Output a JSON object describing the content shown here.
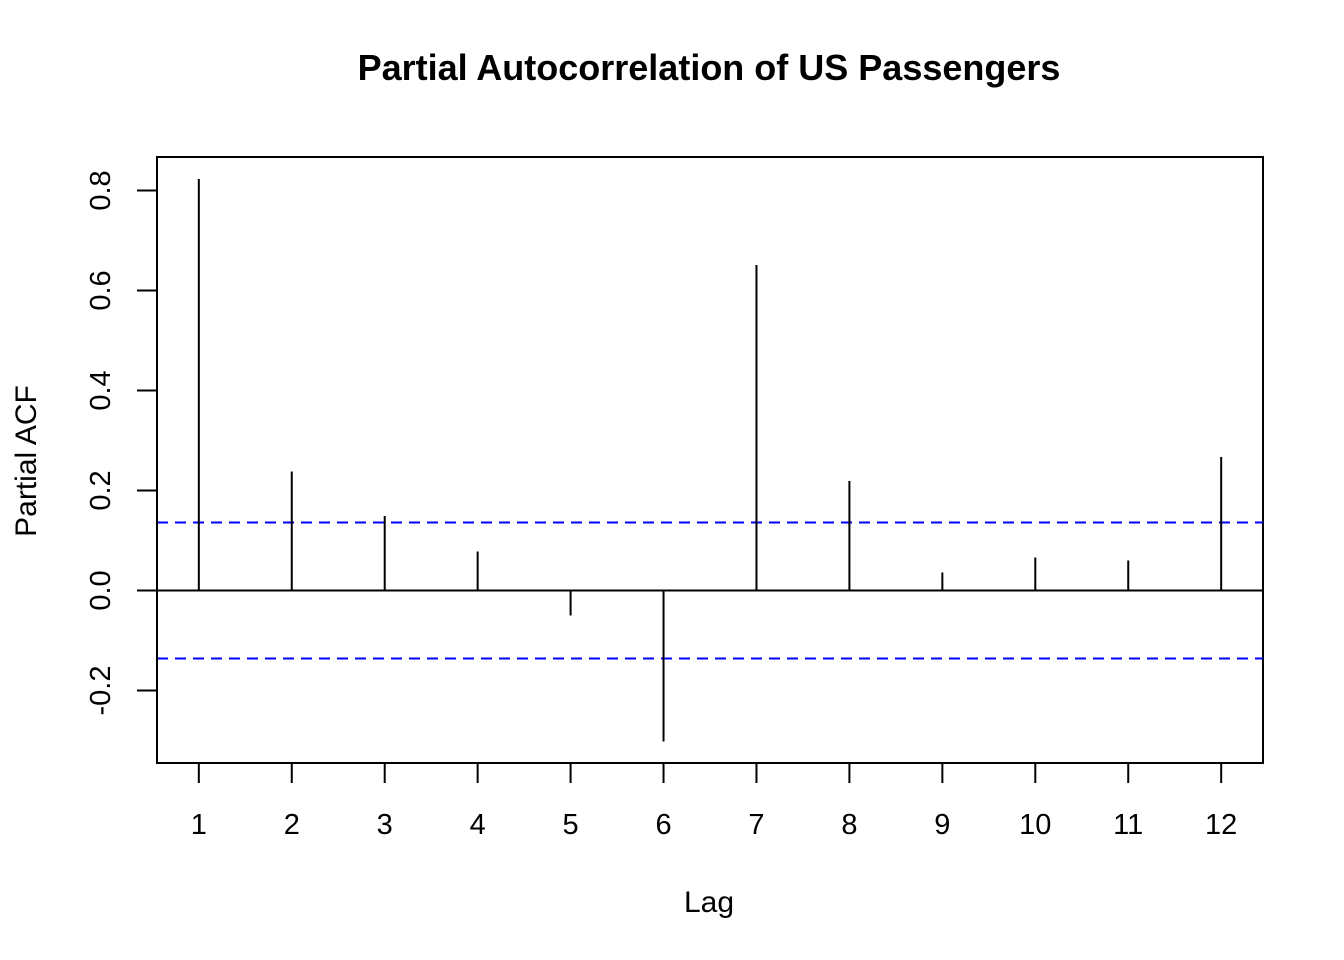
{
  "chart_data": {
    "type": "bar",
    "title": "Partial Autocorrelation of US Passengers",
    "xlabel": "Lag",
    "ylabel": "Partial ACF",
    "x": [
      1,
      2,
      3,
      4,
      5,
      6,
      7,
      8,
      9,
      10,
      11,
      12
    ],
    "values": [
      0.823,
      0.238,
      0.149,
      0.078,
      -0.05,
      -0.302,
      0.651,
      0.219,
      0.036,
      0.066,
      0.06,
      0.267
    ],
    "xticks": [
      "1",
      "2",
      "3",
      "4",
      "5",
      "6",
      "7",
      "8",
      "9",
      "10",
      "11",
      "12"
    ],
    "yticks": [
      "-0.2",
      "0.0",
      "0.2",
      "0.4",
      "0.6",
      "0.8"
    ],
    "xlim": [
      0.55,
      12.45
    ],
    "ylim": [
      -0.345,
      0.867
    ],
    "confidence_bound": 0.136,
    "zero_line": true,
    "grid": false,
    "colors": {
      "spikes": "#000000",
      "confidence_lines": "#0000ff",
      "axes": "#000000"
    }
  }
}
